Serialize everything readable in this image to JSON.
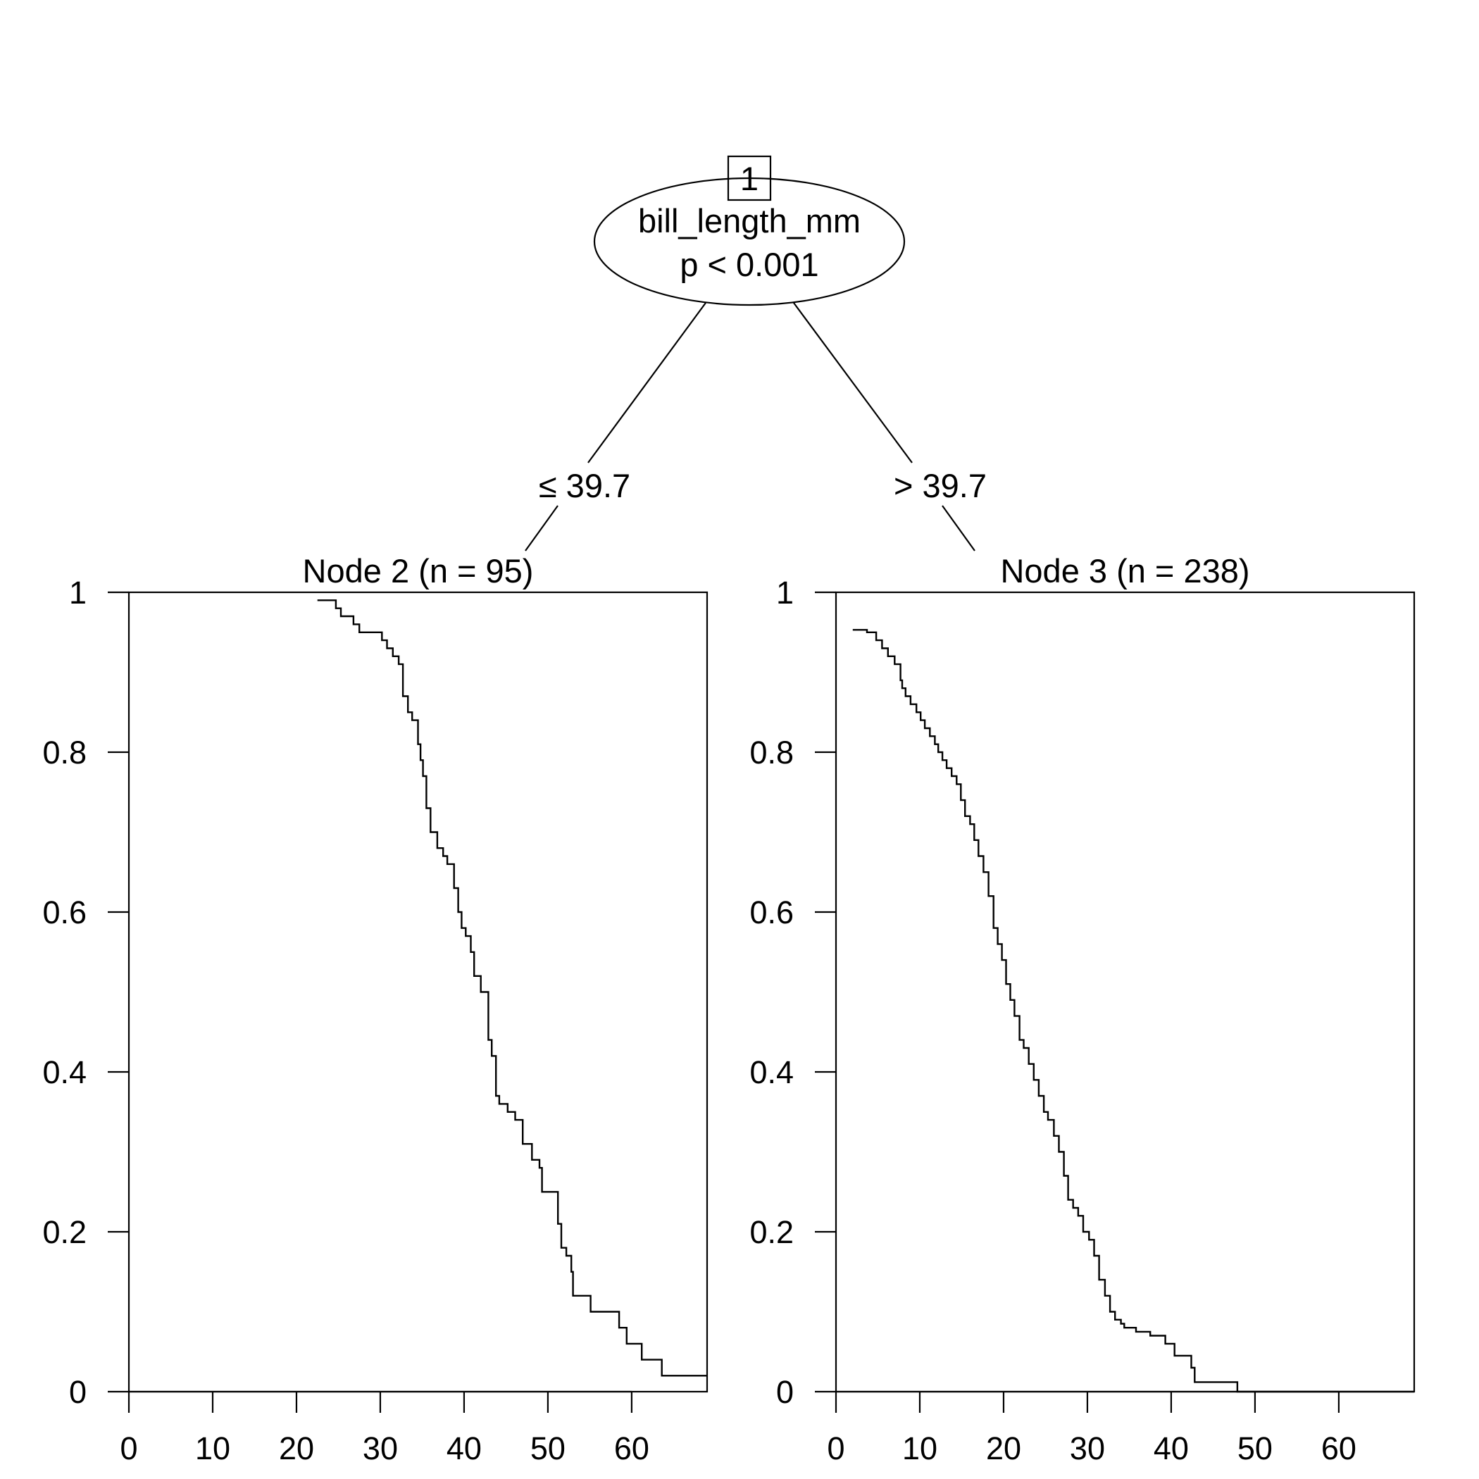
{
  "tree": {
    "root": {
      "id": "1",
      "variable": "bill_length_mm",
      "p_value": "p < 0.001"
    },
    "split_left": "≤ 39.7",
    "split_right": "> 39.7"
  },
  "chart_data": [
    {
      "type": "line",
      "step": true,
      "title": "Node 2 (n = 95)",
      "xlabel": "",
      "ylabel": "",
      "xlim": [
        0,
        69
      ],
      "ylim": [
        0,
        1
      ],
      "x_ticks": [
        0,
        10,
        20,
        30,
        40,
        50,
        60
      ],
      "y_ticks": [
        0,
        0.2,
        0.4,
        0.6,
        0.8,
        1
      ],
      "y_tick_labels": [
        "0",
        "0.2",
        "0.4",
        "0.6",
        "0.8",
        "1"
      ],
      "series": [
        {
          "x": [
            22.5,
            24.7,
            25.3,
            26.8,
            27.5,
            30.2,
            30.8,
            31.5,
            32.2,
            32.7,
            33.3,
            33.8,
            34.5,
            34.8,
            35.1,
            35.5,
            36.0,
            36.8,
            37.5,
            38.0,
            38.8,
            39.3,
            39.7,
            40.2,
            40.8,
            41.2,
            42.0,
            42.9,
            43.3,
            43.8,
            44.2,
            45.2,
            46.1,
            47.0,
            48.1,
            49.0,
            49.3,
            51.2,
            51.6,
            52.2,
            52.8,
            53.0,
            55.1,
            58.5,
            59.4,
            61.2,
            63.6,
            69.0
          ],
          "y": [
            0.99,
            0.98,
            0.97,
            0.96,
            0.95,
            0.94,
            0.93,
            0.92,
            0.91,
            0.87,
            0.85,
            0.84,
            0.81,
            0.79,
            0.77,
            0.73,
            0.7,
            0.68,
            0.67,
            0.66,
            0.63,
            0.6,
            0.58,
            0.57,
            0.55,
            0.52,
            0.5,
            0.44,
            0.42,
            0.37,
            0.36,
            0.35,
            0.34,
            0.31,
            0.29,
            0.28,
            0.25,
            0.21,
            0.18,
            0.17,
            0.15,
            0.12,
            0.1,
            0.08,
            0.06,
            0.04,
            0.02,
            0.02
          ]
        }
      ]
    },
    {
      "type": "line",
      "step": true,
      "title": "Node 3 (n = 238)",
      "xlabel": "",
      "ylabel": "",
      "xlim": [
        0,
        69
      ],
      "ylim": [
        0,
        1
      ],
      "x_ticks": [
        0,
        10,
        20,
        30,
        40,
        50,
        60
      ],
      "y_ticks": [
        0,
        0.2,
        0.4,
        0.6,
        0.8,
        1
      ],
      "y_tick_labels": [
        "0",
        "0.2",
        "0.4",
        "0.6",
        "0.8",
        "1"
      ],
      "series": [
        {
          "x": [
            2.0,
            3.7,
            4.8,
            5.5,
            6.2,
            7.0,
            7.7,
            7.9,
            8.3,
            8.9,
            9.6,
            10.1,
            10.6,
            11.2,
            11.8,
            12.2,
            12.7,
            13.2,
            13.8,
            14.4,
            14.9,
            15.4,
            16.0,
            16.5,
            17.0,
            17.6,
            18.2,
            18.8,
            19.3,
            19.8,
            20.3,
            20.8,
            21.3,
            21.9,
            22.4,
            23.0,
            23.6,
            24.2,
            24.8,
            25.3,
            26.0,
            26.6,
            27.2,
            27.7,
            28.3,
            28.9,
            29.5,
            30.2,
            30.8,
            31.4,
            32.1,
            32.7,
            33.3,
            34.0,
            34.4,
            35.8,
            37.5,
            39.3,
            40.4,
            42.4,
            42.8,
            47.9,
            69.0
          ],
          "y": [
            0.953,
            0.95,
            0.94,
            0.93,
            0.92,
            0.91,
            0.89,
            0.88,
            0.87,
            0.86,
            0.85,
            0.84,
            0.83,
            0.82,
            0.81,
            0.8,
            0.79,
            0.78,
            0.77,
            0.76,
            0.74,
            0.72,
            0.71,
            0.69,
            0.67,
            0.65,
            0.62,
            0.58,
            0.56,
            0.54,
            0.51,
            0.49,
            0.47,
            0.44,
            0.43,
            0.41,
            0.39,
            0.37,
            0.35,
            0.34,
            0.32,
            0.3,
            0.27,
            0.24,
            0.23,
            0.22,
            0.2,
            0.19,
            0.17,
            0.14,
            0.12,
            0.1,
            0.09,
            0.085,
            0.08,
            0.075,
            0.07,
            0.06,
            0.045,
            0.03,
            0.012,
            0.0,
            0.0
          ]
        }
      ]
    }
  ]
}
